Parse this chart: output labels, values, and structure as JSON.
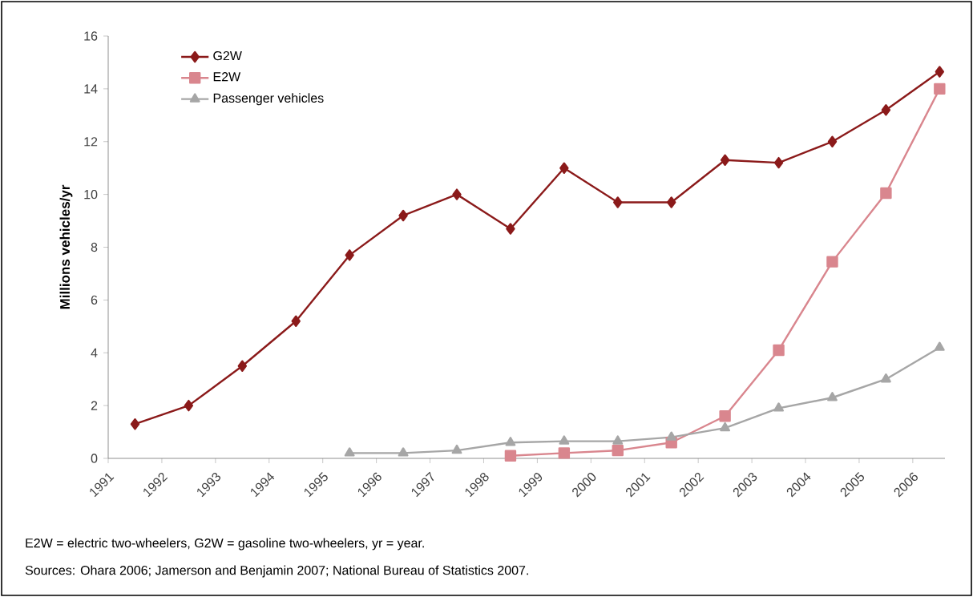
{
  "chart_data": {
    "type": "line",
    "ylabel": "**Millions vehicles/yr**",
    "x": [
      1991.5,
      1992.5,
      1993.5,
      1994.5,
      1995.5,
      1996.5,
      1997.5,
      1998.5,
      1999.5,
      2000.5,
      2001.5,
      2002.5,
      2003.5,
      2004.5,
      2005.5,
      2006.5
    ],
    "series": [
      {
        "name": "G2W",
        "color": "#8b1a1a",
        "marker": "diamond",
        "values": [
          1.3,
          2.0,
          3.5,
          5.2,
          7.7,
          9.2,
          10.0,
          8.7,
          11.0,
          9.7,
          9.7,
          11.3,
          11.2,
          12.0,
          13.2,
          14.65
        ]
      },
      {
        "name": "E2W",
        "color": "#d9868e",
        "marker": "square",
        "values": [
          null,
          null,
          null,
          null,
          null,
          null,
          null,
          0.1,
          0.2,
          0.3,
          0.6,
          1.6,
          4.1,
          7.45,
          10.05,
          14.0
        ]
      },
      {
        "name": "Passenger vehicles",
        "color": "#a6a6a6",
        "marker": "triangle",
        "values": [
          null,
          null,
          null,
          null,
          0.2,
          0.2,
          0.3,
          0.6,
          0.65,
          0.65,
          0.8,
          1.15,
          1.9,
          2.3,
          3.0,
          4.2
        ]
      }
    ],
    "xlim": [
      1991,
      2006.6
    ],
    "xticks": [
      1991,
      1992,
      1993,
      1994,
      1995,
      1996,
      1997,
      1998,
      1999,
      2000,
      2001,
      2002,
      2003,
      2004,
      2005,
      2006
    ],
    "ylim": [
      0,
      16
    ],
    "yticks": [
      0,
      2,
      4,
      6,
      8,
      10,
      12,
      14,
      16
    ],
    "grid": false,
    "legend": "top left",
    "annotations": [
      "E2W = electric two-wheelers, G2W = gasoline two-wheelers, yr = year.",
      "Sources: Ohara 2006; Jamerson and Benjamin 2007; National Bureau of Statistics 2007."
    ]
  }
}
